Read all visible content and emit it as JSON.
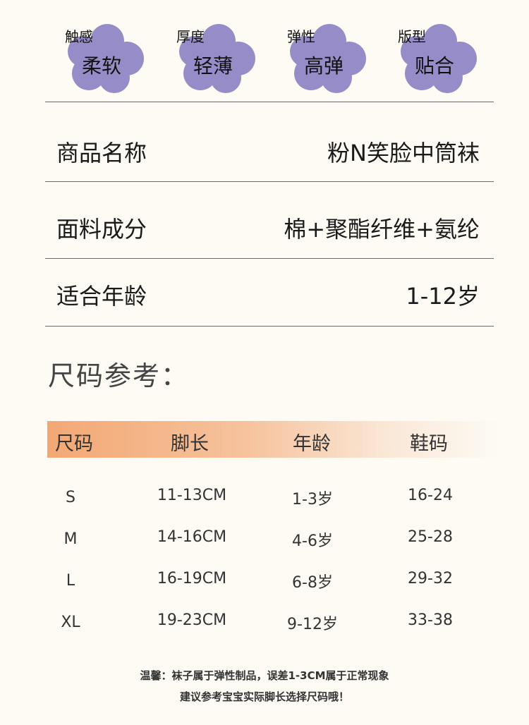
{
  "features": [
    {
      "label": "触感",
      "value": "柔软"
    },
    {
      "label": "厚度",
      "value": "轻薄"
    },
    {
      "label": "弹性",
      "value": "高弹"
    },
    {
      "label": "版型",
      "value": "贴合"
    }
  ],
  "colors": {
    "blob": "#968dc8",
    "header_gradient_start": "#f3a874",
    "background": "#fdfbf4"
  },
  "specs": [
    {
      "label": "商品名称",
      "value": "粉N笑脸中筒袜"
    },
    {
      "label": "面料成分",
      "value": "棉+聚酯纤维+氨纶"
    },
    {
      "label": "适合年龄",
      "value": "1-12岁"
    }
  ],
  "size_title": "尺码参考：",
  "size_table": {
    "headers": [
      "尺码",
      "脚长",
      "年龄",
      "鞋码"
    ],
    "rows": [
      [
        "S",
        "11-13CM",
        "1-3岁",
        "16-24"
      ],
      [
        "M",
        "14-16CM",
        "4-6岁",
        "25-28"
      ],
      [
        "L",
        "16-19CM",
        "6-8岁",
        "29-32"
      ],
      [
        "XL",
        "19-23CM",
        "9-12岁",
        "33-38"
      ]
    ]
  },
  "notes": [
    "温馨：袜子属于弹性制品，误差1-3CM属于正常现象",
    "建议参考宝宝实际脚长选择尺码哦！"
  ]
}
